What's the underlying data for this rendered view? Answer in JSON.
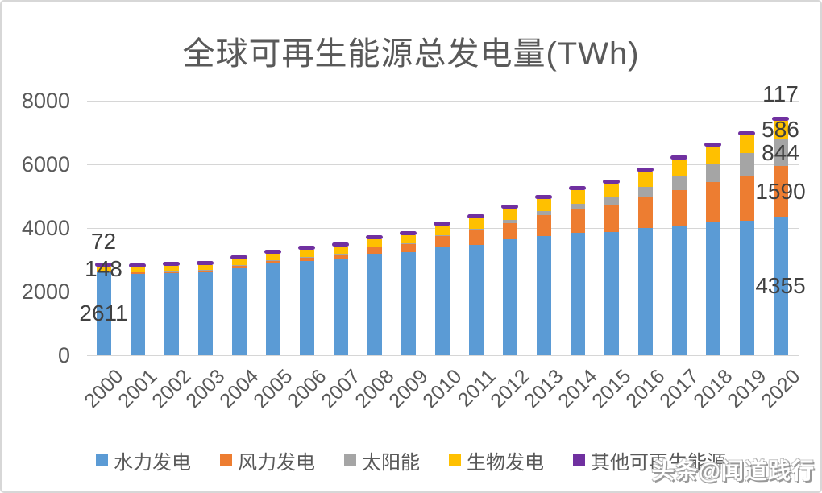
{
  "title": "全球可再生能源总发电量(TWh)",
  "watermark": "头条@闻道践行",
  "colors": {
    "hydro": "#5B9BD5",
    "wind": "#ED7D31",
    "solar": "#A5A5A5",
    "bio": "#FFC000",
    "other": "#7030A0",
    "grid": "#D6D6D6",
    "axis_text": "#595959",
    "data_label_text": "#404040",
    "border": "#D7D7D7"
  },
  "chart_data": {
    "type": "bar",
    "stacked": true,
    "title": "全球可再生能源总发电量(TWh)",
    "categories": [
      "2000",
      "2001",
      "2002",
      "2003",
      "2004",
      "2005",
      "2006",
      "2007",
      "2008",
      "2009",
      "2010",
      "2011",
      "2012",
      "2013",
      "2014",
      "2015",
      "2016",
      "2017",
      "2018",
      "2019",
      "2020"
    ],
    "series": [
      {
        "name": "水力发电",
        "color": "#5B9BD5",
        "values": [
          2611,
          2560,
          2590,
          2610,
          2740,
          2880,
          2960,
          3020,
          3180,
          3230,
          3400,
          3480,
          3640,
          3750,
          3860,
          3870,
          4000,
          4060,
          4190,
          4220,
          4355
        ]
      },
      {
        "name": "风力发电",
        "color": "#ED7D31",
        "values": [
          31,
          38,
          52,
          63,
          85,
          104,
          133,
          170,
          221,
          275,
          342,
          434,
          523,
          645,
          712,
          831,
          957,
          1136,
          1263,
          1420,
          1590
        ]
      },
      {
        "name": "太阳能",
        "color": "#A5A5A5",
        "values": [
          1,
          1,
          2,
          2,
          3,
          4,
          6,
          8,
          12,
          20,
          32,
          63,
          97,
          132,
          197,
          253,
          328,
          442,
          570,
          710,
          844
        ]
      },
      {
        "name": "生物发电",
        "color": "#FFC000",
        "values": [
          148,
          152,
          160,
          170,
          182,
          197,
          210,
          225,
          240,
          260,
          300,
          320,
          350,
          396,
          423,
          450,
          480,
          510,
          540,
          565,
          586
        ]
      },
      {
        "name": "其他可再生能源",
        "color": "#7030A0",
        "values": [
          72,
          73,
          74,
          75,
          76,
          78,
          80,
          82,
          84,
          86,
          88,
          90,
          93,
          96,
          99,
          102,
          105,
          108,
          111,
          114,
          117
        ]
      }
    ],
    "ylabel": "",
    "xlabel": "",
    "ylim": [
      0,
      8000
    ],
    "yticks": [
      0,
      2000,
      4000,
      6000,
      8000
    ],
    "grid": true,
    "legend_position": "bottom",
    "point_labels": [
      {
        "year": "2000",
        "series": "其他可再生能源",
        "text": "72",
        "placement": "above"
      },
      {
        "year": "2000",
        "series": "生物发电",
        "text": "148",
        "placement": "center"
      },
      {
        "year": "2000",
        "series": "水力发电",
        "text": "2611",
        "placement": "center"
      },
      {
        "year": "2020",
        "series": "其他可再生能源",
        "text": "117",
        "placement": "above"
      },
      {
        "year": "2020",
        "series": "生物发电",
        "text": "586",
        "placement": "center"
      },
      {
        "year": "2020",
        "series": "太阳能",
        "text": "844",
        "placement": "center"
      },
      {
        "year": "2020",
        "series": "风力发电",
        "text": "1590",
        "placement": "center"
      },
      {
        "year": "2020",
        "series": "水力发电",
        "text": "4355",
        "placement": "center"
      }
    ]
  }
}
